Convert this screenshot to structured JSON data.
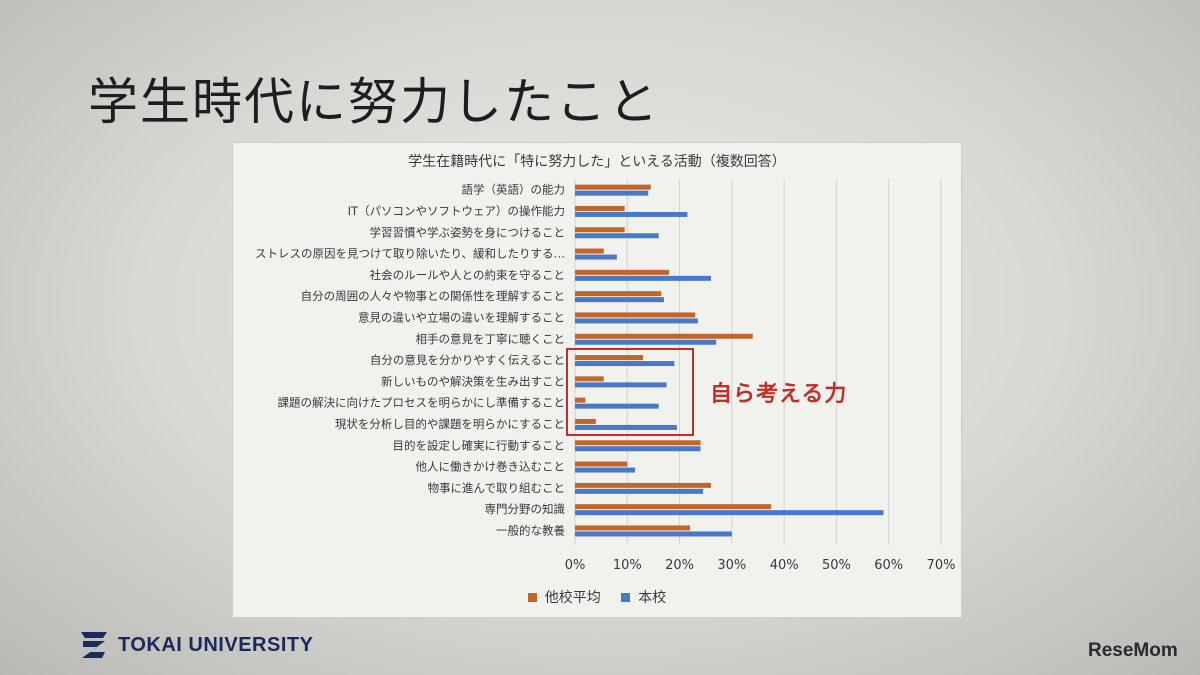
{
  "slide": {
    "title": "学生時代に努力したこと",
    "callout": "自ら考える力",
    "logo_text": "TOKAI UNIVERSITY",
    "watermark": "ReseMom"
  },
  "colors": {
    "other_schools": "#c0662b",
    "this_school": "#4a78c8",
    "callout": "#c0302a"
  },
  "chart_data": {
    "type": "bar",
    "orientation": "horizontal",
    "title": "学生在籍時代に「特に努力した」といえる活動（複数回答）",
    "categories": [
      "語学（英語）の能力",
      "IT（パソコンやソフトウェア）の操作能力",
      "学習習慣や学ぶ姿勢を身につけること",
      "ストレスの原因を見つけて取り除いたり、緩和したりする…",
      "社会のルールや人との約束を守ること",
      "自分の周囲の人々や物事との関係性を理解すること",
      "意見の違いや立場の違いを理解すること",
      "相手の意見を丁寧に聴くこと",
      "自分の意見を分かりやすく伝えること",
      "新しいものや解決策を生み出すこと",
      "課題の解決に向けたプロセスを明らかにし準備すること",
      "現状を分析し目的や課題を明らかにすること",
      "目的を設定し確実に行動すること",
      "他人に働きかけ巻き込むこと",
      "物事に進んで取り組むこと",
      "専門分野の知識",
      "一般的な教養"
    ],
    "series": [
      {
        "name": "他校平均",
        "values": [
          14.5,
          9.5,
          9.5,
          5.5,
          18,
          16.5,
          23,
          34,
          13,
          5.5,
          2,
          4,
          24,
          10,
          26,
          37.5,
          22
        ]
      },
      {
        "name": "本校",
        "values": [
          14,
          21.5,
          16,
          8,
          26,
          17,
          23.5,
          27,
          19,
          17.5,
          16,
          19.5,
          24,
          11.5,
          24.5,
          59,
          30
        ]
      }
    ],
    "xlim": [
      0,
      70
    ],
    "xticks": [
      "0%",
      "10%",
      "20%",
      "30%",
      "40%",
      "50%",
      "60%",
      "70%"
    ],
    "grid": true,
    "legend": "bottom"
  }
}
